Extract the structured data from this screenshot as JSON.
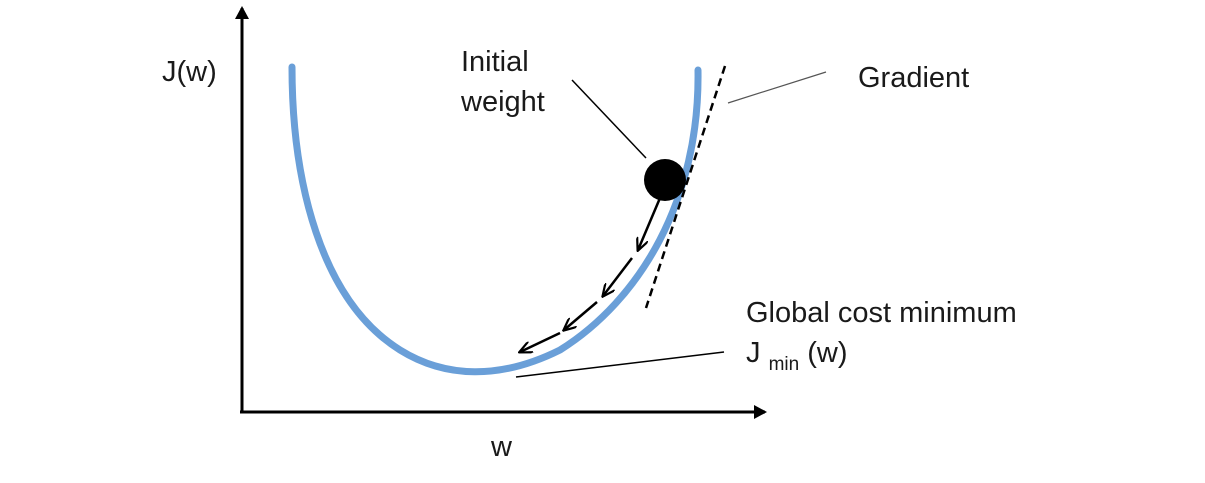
{
  "y_axis_label": "J(w)",
  "x_axis_label": "w",
  "annotations": {
    "initial_weight_line1": "Initial",
    "initial_weight_line2": "weight",
    "gradient": "Gradient",
    "global_min_line1": "Global cost minimum",
    "global_min_symbol": "J",
    "global_min_subscript": "min",
    "global_min_suffix": "(w)"
  },
  "colors": {
    "curve": "#6a9fd8",
    "axes": "#000000",
    "ball": "#000000",
    "text": "#1a1a1a"
  },
  "descent_steps": 4
}
